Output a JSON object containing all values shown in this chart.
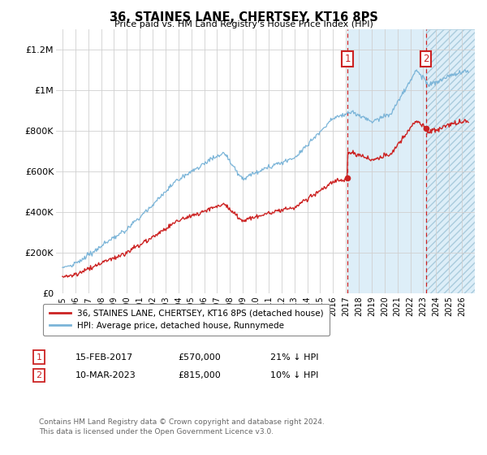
{
  "title": "36, STAINES LANE, CHERTSEY, KT16 8PS",
  "subtitle": "Price paid vs. HM Land Registry's House Price Index (HPI)",
  "hpi_color": "#7ab4d8",
  "price_color": "#cc2222",
  "dashed_color": "#cc2222",
  "ylim": [
    0,
    1300000
  ],
  "yticks": [
    0,
    200000,
    400000,
    600000,
    800000,
    1000000,
    1200000
  ],
  "ytick_labels": [
    "£0",
    "£200K",
    "£400K",
    "£600K",
    "£800K",
    "£1M",
    "£1.2M"
  ],
  "legend_label_price": "36, STAINES LANE, CHERTSEY, KT16 8PS (detached house)",
  "legend_label_hpi": "HPI: Average price, detached house, Runnymede",
  "annotation1_date": "15-FEB-2017",
  "annotation1_price": "£570,000",
  "annotation1_note": "21% ↓ HPI",
  "annotation2_date": "10-MAR-2023",
  "annotation2_price": "£815,000",
  "annotation2_note": "10% ↓ HPI",
  "footnote": "Contains HM Land Registry data © Crown copyright and database right 2024.\nThis data is licensed under the Open Government Licence v3.0.",
  "sale1_x": 2017.12,
  "sale1_y": 570000,
  "sale2_x": 2023.19,
  "sale2_y": 815000,
  "xmin": 1994.5,
  "xmax": 2027.0,
  "shade1_start": 2017.12,
  "shade2_start": 2023.19
}
